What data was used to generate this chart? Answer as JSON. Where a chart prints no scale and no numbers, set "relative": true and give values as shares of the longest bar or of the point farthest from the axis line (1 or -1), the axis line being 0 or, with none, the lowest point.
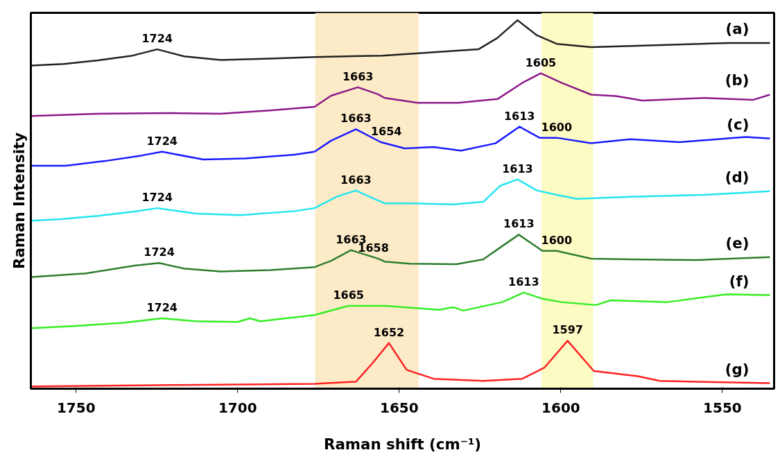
{
  "chart_data": {
    "type": "line",
    "relative": true,
    "xlabel": "Raman shift (cm⁻¹)",
    "ylabel": "Raman Intensity",
    "xlim": [
      1764,
      1534
    ],
    "xticks": [
      1750,
      1700,
      1650,
      1600,
      1550
    ],
    "grid": false,
    "legend": false,
    "marker": "none",
    "line_style": "solid",
    "series": [
      {
        "name": "(a)",
        "color": "#222222",
        "x": [
          1763.8,
          1753.8,
          1743.2,
          1732.5,
          1724.9,
          1716.6,
          1705.3,
          1690,
          1676.2,
          1655.1,
          1644.7,
          1625.5,
          1619.6,
          1613.4,
          1607.4,
          1601.3,
          1590.6,
          1570.9,
          1548.1,
          1535.3
        ],
        "values": [
          0.877,
          0.881,
          0.891,
          0.904,
          0.921,
          0.902,
          0.892,
          0.896,
          0.9,
          0.904,
          0.91,
          0.921,
          0.952,
          1.0,
          0.959,
          0.936,
          0.927,
          0.932,
          0.938,
          0.938
        ]
      },
      {
        "name": "(b)",
        "color": "#8b1a89",
        "x": [
          1763.8,
          1743.2,
          1720.4,
          1705.3,
          1690,
          1676.2,
          1671.1,
          1662.8,
          1656.6,
          1654.5,
          1644.3,
          1631.7,
          1619.6,
          1611.9,
          1606.2,
          1599.8,
          1590.6,
          1583,
          1574.7,
          1555.7,
          1540.4,
          1535.3
        ],
        "values": [
          0.74,
          0.746,
          0.748,
          0.746,
          0.755,
          0.765,
          0.795,
          0.818,
          0.799,
          0.789,
          0.776,
          0.776,
          0.786,
          0.83,
          0.856,
          0.83,
          0.798,
          0.794,
          0.782,
          0.789,
          0.784,
          0.798
        ]
      },
      {
        "name": "(c)",
        "color": "#1a1aff",
        "x": [
          1763.8,
          1753.2,
          1740.9,
          1729.6,
          1723.4,
          1710.6,
          1697.7,
          1682.3,
          1676.2,
          1671.1,
          1663.4,
          1655.7,
          1648.3,
          1639.4,
          1630.9,
          1620.2,
          1612.8,
          1606.6,
          1601.3,
          1590.6,
          1578.5,
          1563.2,
          1542.8,
          1535.3
        ],
        "values": [
          0.605,
          0.605,
          0.618,
          0.633,
          0.643,
          0.622,
          0.625,
          0.635,
          0.643,
          0.673,
          0.704,
          0.669,
          0.652,
          0.656,
          0.646,
          0.666,
          0.711,
          0.681,
          0.681,
          0.666,
          0.677,
          0.669,
          0.683,
          0.679
        ]
      },
      {
        "name": "(d)",
        "color": "#22e5f0",
        "x": [
          1763.8,
          1754.7,
          1743.2,
          1731.9,
          1724.9,
          1712.8,
          1699.1,
          1682.3,
          1676.2,
          1669.4,
          1663.4,
          1657.7,
          1654.5,
          1646.8,
          1633.2,
          1624,
          1618.7,
          1613.4,
          1607.4,
          1601.3,
          1595.1,
          1578.5,
          1555.7,
          1535.3
        ],
        "values": [
          0.456,
          0.46,
          0.469,
          0.481,
          0.49,
          0.475,
          0.471,
          0.482,
          0.49,
          0.521,
          0.538,
          0.515,
          0.503,
          0.503,
          0.5,
          0.507,
          0.551,
          0.568,
          0.538,
          0.526,
          0.515,
          0.521,
          0.526,
          0.536
        ]
      },
      {
        "name": "(e)",
        "color": "#2e7d2e",
        "x": [
          1763.8,
          1747,
          1731.9,
          1724.3,
          1716.6,
          1705.3,
          1690,
          1676.2,
          1671.1,
          1664.9,
          1656.6,
          1654.5,
          1646.8,
          1632.3,
          1624,
          1619.6,
          1613,
          1605.7,
          1601.3,
          1590.6,
          1578.5,
          1557.9,
          1535.3
        ],
        "values": [
          0.303,
          0.313,
          0.334,
          0.341,
          0.326,
          0.318,
          0.322,
          0.33,
          0.347,
          0.376,
          0.353,
          0.345,
          0.339,
          0.338,
          0.351,
          0.378,
          0.418,
          0.374,
          0.374,
          0.353,
          0.351,
          0.349,
          0.357
        ]
      },
      {
        "name": "(f)",
        "color": "#33ee22",
        "x": [
          1763.8,
          1750.9,
          1735.5,
          1723.4,
          1712.8,
          1700,
          1696.2,
          1693,
          1676.2,
          1665.7,
          1659.6,
          1654.5,
          1637.7,
          1633.2,
          1630.2,
          1618.1,
          1611.5,
          1605.7,
          1599.8,
          1589.1,
          1584.5,
          1567,
          1548.9,
          1535.3
        ],
        "values": [
          0.164,
          0.17,
          0.179,
          0.191,
          0.183,
          0.181,
          0.191,
          0.183,
          0.2,
          0.225,
          0.225,
          0.225,
          0.214,
          0.221,
          0.212,
          0.235,
          0.261,
          0.244,
          0.235,
          0.227,
          0.24,
          0.235,
          0.256,
          0.254
        ]
      },
      {
        "name": "(g)",
        "color": "#ff2020",
        "x": [
          1763.8,
          1720.4,
          1676.2,
          1663.4,
          1658.1,
          1653.2,
          1647.7,
          1639.4,
          1624,
          1611.9,
          1605.1,
          1597.9,
          1589.8,
          1576.2,
          1569.4,
          1535.3
        ],
        "values": [
          0.006,
          0.01,
          0.013,
          0.019,
          0.071,
          0.124,
          0.051,
          0.027,
          0.021,
          0.027,
          0.057,
          0.13,
          0.048,
          0.034,
          0.021,
          0.015
        ]
      }
    ],
    "bands": [
      {
        "axis": "x",
        "from": 1676,
        "to": 1644,
        "color": "#fdebc8"
      },
      {
        "axis": "x",
        "from": 1606,
        "to": 1590,
        "color": "#fdfbc4"
      }
    ],
    "annotations": [
      {
        "text": "1724",
        "x": 1724.9,
        "y": 0.921
      },
      {
        "text": "1663",
        "x": 1662.8,
        "y": 0.818
      },
      {
        "text": "1605",
        "x": 1606.2,
        "y": 0.856
      },
      {
        "text": "1724",
        "x": 1723.4,
        "y": 0.643
      },
      {
        "text": "1663",
        "x": 1663.4,
        "y": 0.704
      },
      {
        "text": "1654",
        "x": 1654.0,
        "y": 0.669
      },
      {
        "text": "1613",
        "x": 1612.8,
        "y": 0.711
      },
      {
        "text": "1600",
        "x": 1601.3,
        "y": 0.681
      },
      {
        "text": "1724",
        "x": 1724.9,
        "y": 0.49
      },
      {
        "text": "1663",
        "x": 1663.4,
        "y": 0.538
      },
      {
        "text": "1613",
        "x": 1613.4,
        "y": 0.568
      },
      {
        "text": "1724",
        "x": 1724.3,
        "y": 0.341
      },
      {
        "text": "1663",
        "x": 1664.9,
        "y": 0.376
      },
      {
        "text": "1658",
        "x": 1658.0,
        "y": 0.353
      },
      {
        "text": "1613",
        "x": 1613.0,
        "y": 0.418
      },
      {
        "text": "1600",
        "x": 1601.3,
        "y": 0.374
      },
      {
        "text": "1724",
        "x": 1723.4,
        "y": 0.191
      },
      {
        "text": "1665",
        "x": 1665.7,
        "y": 0.225
      },
      {
        "text": "1613",
        "x": 1611.5,
        "y": 0.261
      },
      {
        "text": "1652",
        "x": 1653.2,
        "y": 0.124
      },
      {
        "text": "1597",
        "x": 1597.9,
        "y": 0.13
      }
    ]
  }
}
